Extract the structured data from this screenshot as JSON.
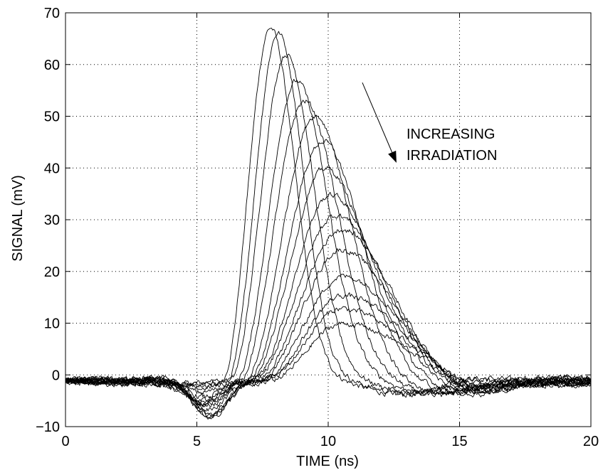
{
  "chart_data": {
    "type": "line",
    "xlabel": "TIME (ns)",
    "ylabel": "SIGNAL (mV)",
    "xlim": [
      0,
      20
    ],
    "ylim": [
      -10,
      70
    ],
    "x_ticks": [
      "0",
      "5",
      "10",
      "15",
      "20"
    ],
    "y_ticks": [
      "−10",
      "0",
      "10",
      "20",
      "30",
      "40",
      "50",
      "60",
      "70"
    ],
    "grid": "dotted",
    "annotation": {
      "line1": "INCREASING",
      "line2": "IRRADIATION"
    },
    "arrow": {
      "from": [
        11.3,
        56.5
      ],
      "to": [
        12.6,
        41
      ]
    },
    "series": [
      {
        "peak_x": 7.8,
        "peak_y": 67,
        "rise_start": 5.9,
        "dip_x": 4.9,
        "dip_y": -1.5,
        "end_y": -1.5
      },
      {
        "peak_x": 8.1,
        "peak_y": 66,
        "rise_start": 6.1,
        "dip_x": 5.0,
        "dip_y": -2.0,
        "end_y": -1.5
      },
      {
        "peak_x": 8.4,
        "peak_y": 62,
        "rise_start": 6.2,
        "dip_x": 5.0,
        "dip_y": -2.5,
        "end_y": -1.2
      },
      {
        "peak_x": 8.8,
        "peak_y": 57,
        "rise_start": 6.4,
        "dip_x": 5.1,
        "dip_y": -3.0,
        "end_y": -1.0
      },
      {
        "peak_x": 9.1,
        "peak_y": 53,
        "rise_start": 6.5,
        "dip_x": 5.1,
        "dip_y": -3.5,
        "end_y": -1.5
      },
      {
        "peak_x": 9.5,
        "peak_y": 50,
        "rise_start": 6.7,
        "dip_x": 5.2,
        "dip_y": -4.0,
        "end_y": -1.5
      },
      {
        "peak_x": 9.8,
        "peak_y": 45,
        "rise_start": 6.8,
        "dip_x": 5.2,
        "dip_y": -4.5,
        "end_y": -0.5
      },
      {
        "peak_x": 9.9,
        "peak_y": 40,
        "rise_start": 6.9,
        "dip_x": 5.3,
        "dip_y": -5.0,
        "end_y": -1.0
      },
      {
        "peak_x": 10.1,
        "peak_y": 35,
        "rise_start": 7.0,
        "dip_x": 5.3,
        "dip_y": -5.5,
        "end_y": -1.5
      },
      {
        "peak_x": 10.3,
        "peak_y": 31,
        "rise_start": 7.0,
        "dip_x": 5.4,
        "dip_y": -6.0,
        "end_y": -2.0
      },
      {
        "peak_x": 10.5,
        "peak_y": 28,
        "rise_start": 7.1,
        "dip_x": 5.4,
        "dip_y": -6.5,
        "end_y": -1.0
      },
      {
        "peak_x": 10.5,
        "peak_y": 24,
        "rise_start": 7.2,
        "dip_x": 5.4,
        "dip_y": -7.0,
        "end_y": -1.5
      },
      {
        "peak_x": 10.6,
        "peak_y": 19,
        "rise_start": 7.3,
        "dip_x": 5.5,
        "dip_y": -7.5,
        "end_y": -1.0
      },
      {
        "peak_x": 10.6,
        "peak_y": 15.5,
        "rise_start": 7.4,
        "dip_x": 5.5,
        "dip_y": -7.8,
        "end_y": -2.0
      },
      {
        "peak_x": 10.5,
        "peak_y": 13,
        "rise_start": 7.5,
        "dip_x": 5.5,
        "dip_y": -8.0,
        "end_y": -1.5
      },
      {
        "peak_x": 10.5,
        "peak_y": 10,
        "rise_start": 7.6,
        "dip_x": 5.6,
        "dip_y": -8.0,
        "end_y": -1.0
      }
    ]
  }
}
